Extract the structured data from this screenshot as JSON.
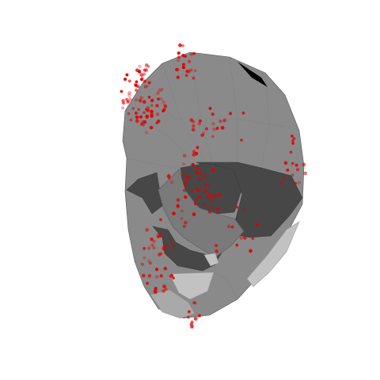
{
  "figure": {
    "kind": "3d-head-mesh-with-sensor-points",
    "background_color": "#ffffff",
    "colors": {
      "mesh_mid": "#8a8a8a",
      "mesh_dark": "#474747",
      "mesh_light": "#c2c2c2",
      "mesh_edge": "#5a5a5a",
      "point_color": "#e00000"
    },
    "mesh_layer_name": "head-surface-mesh",
    "points_layer_name": "sensor-points",
    "point_count": 260,
    "random_seed": 7
  }
}
